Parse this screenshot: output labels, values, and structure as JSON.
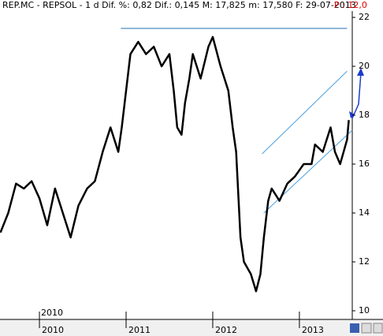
{
  "chart_data": {
    "type": "line",
    "title": "REP.MC - REPSOL - 1 d  Dif. %: 0,82  Dif.: 0,145  M: 17,825  m: 17,580  F: 29-07-2013",
    "subtitle": "P : 12,0",
    "period_label": "2010",
    "x": [
      2009.55,
      2009.64,
      2009.73,
      2009.82,
      2009.91,
      2010.0,
      2010.09,
      2010.18,
      2010.27,
      2010.36,
      2010.45,
      2010.55,
      2010.64,
      2010.73,
      2010.82,
      2010.91,
      2010.95,
      2011.05,
      2011.14,
      2011.23,
      2011.32,
      2011.41,
      2011.5,
      2011.55,
      2011.59,
      2011.64,
      2011.68,
      2011.73,
      2011.77,
      2011.86,
      2011.95,
      2012.0,
      2012.09,
      2012.18,
      2012.23,
      2012.27,
      2012.32,
      2012.36,
      2012.44,
      2012.5,
      2012.55,
      2012.59,
      2012.64,
      2012.68,
      2012.77,
      2012.86,
      2012.95,
      2013.05,
      2013.14,
      2013.18,
      2013.27,
      2013.36,
      2013.41,
      2013.47,
      2013.55,
      2013.57
    ],
    "series": [
      {
        "color": "#000000",
        "values": [
          13.2,
          14.0,
          15.2,
          15.0,
          15.3,
          14.6,
          13.5,
          15.0,
          14.0,
          13.0,
          14.3,
          15.0,
          15.3,
          16.5,
          17.5,
          16.5,
          17.5,
          20.5,
          21.0,
          20.5,
          20.8,
          20.0,
          20.5,
          19.0,
          17.5,
          17.2,
          18.5,
          19.5,
          20.5,
          19.5,
          20.8,
          21.2,
          20.0,
          19.0,
          17.5,
          16.5,
          13.0,
          12.0,
          11.5,
          10.8,
          11.5,
          13.0,
          14.5,
          15.0,
          14.5,
          15.2,
          15.5,
          16.0,
          16.0,
          16.8,
          16.5,
          17.5,
          16.5,
          16.0,
          17.0,
          17.8
        ]
      }
    ],
    "trend_lines": [
      {
        "color": "#1f6fb4",
        "x": [
          2010.94,
          2013.55
        ],
        "y": [
          21.55,
          21.55
        ]
      },
      {
        "color": "#4aa0e0",
        "x": [
          2012.57,
          2013.55
        ],
        "y": [
          16.42,
          19.8
        ]
      },
      {
        "color": "#4aa0e0",
        "x": [
          2012.59,
          2013.61
        ],
        "y": [
          14.0,
          17.39
        ]
      }
    ],
    "xlim": [
      2009.545,
      2013.61
    ],
    "xticks": [
      2010,
      2011,
      2012,
      2013
    ],
    "ylim": [
      9.71,
      22.26
    ],
    "yticks": [
      10,
      12,
      14,
      16,
      18,
      20,
      22
    ]
  }
}
